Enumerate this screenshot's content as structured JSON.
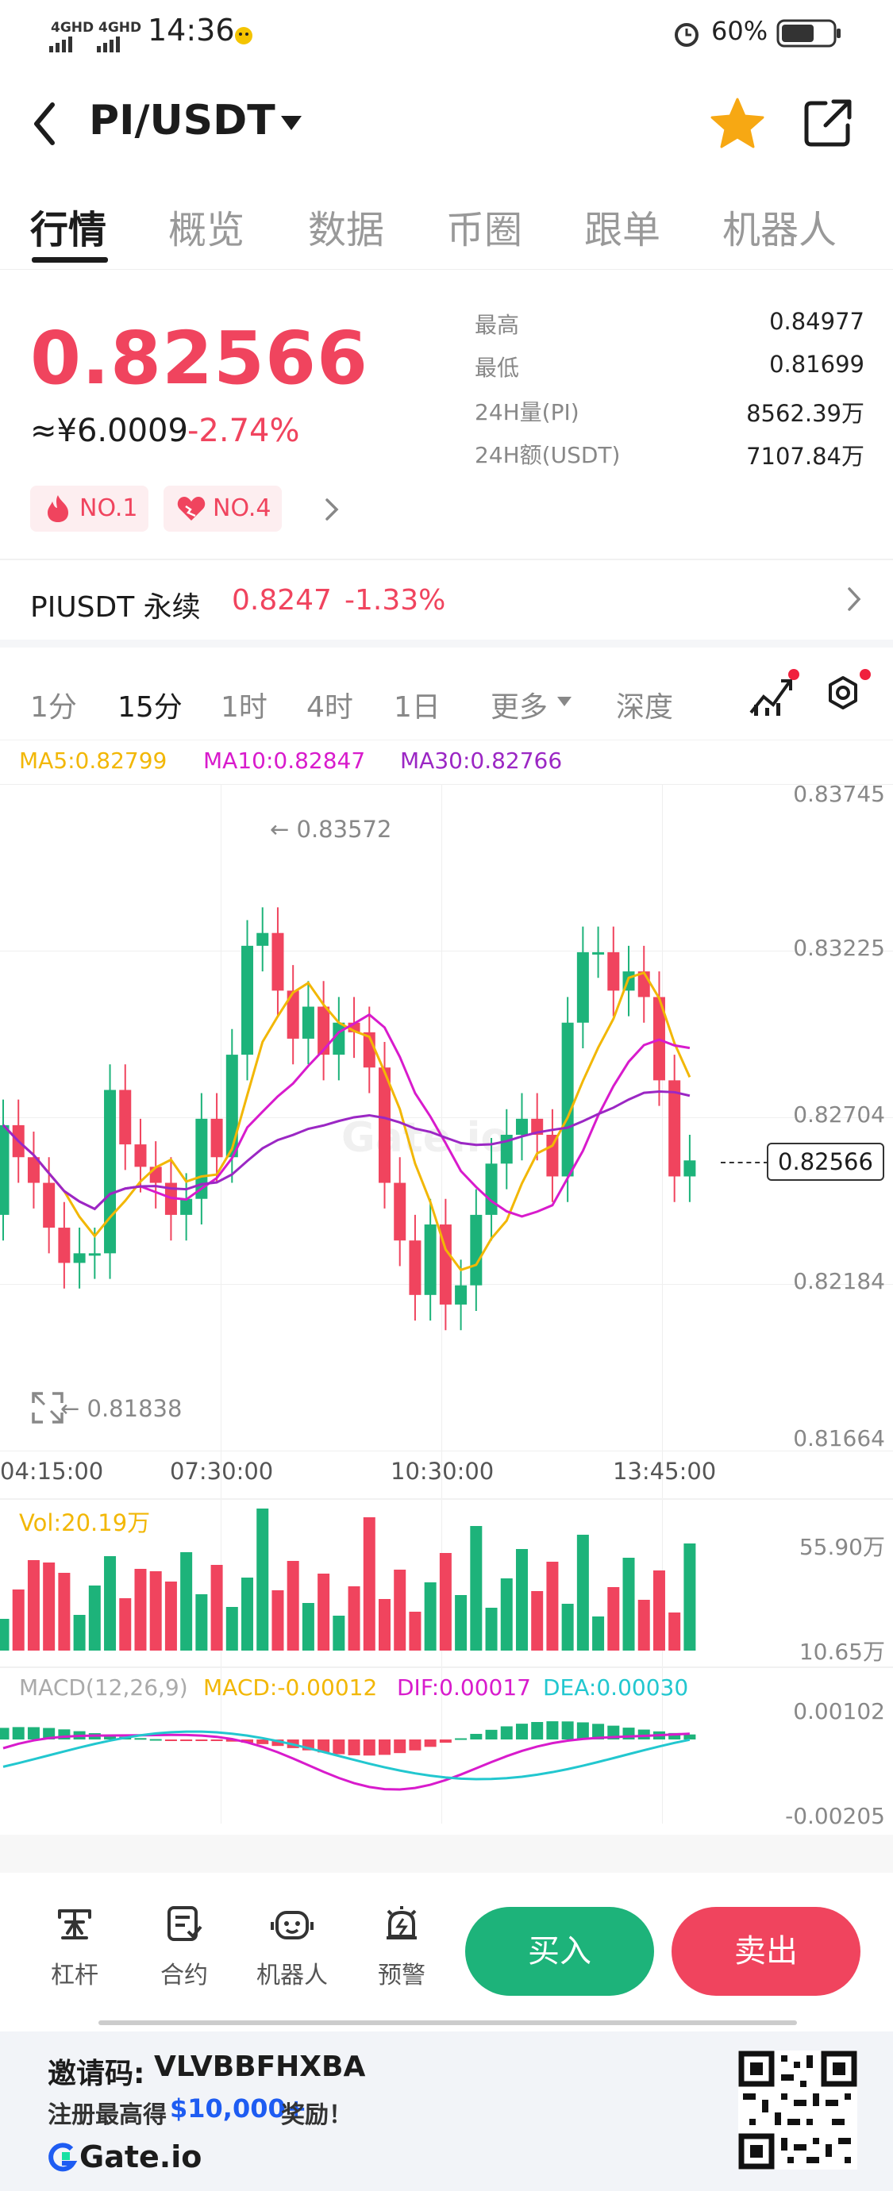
{
  "status_bar": {
    "network1": "4GHD",
    "network2": "4GHD",
    "time": "14:36",
    "battery": "60%"
  },
  "header": {
    "pair": "PI/USDT"
  },
  "tabs": [
    {
      "label": "行情",
      "active": true
    },
    {
      "label": "概览"
    },
    {
      "label": "数据"
    },
    {
      "label": "币圈"
    },
    {
      "label": "跟单"
    },
    {
      "label": "机器人"
    }
  ],
  "ticker": {
    "last_price": "0.82566",
    "cny_price": "≈¥6.0009",
    "change": "-2.74%",
    "stats": [
      {
        "label": "最高",
        "value": "0.84977"
      },
      {
        "label": "最低",
        "value": "0.81699"
      },
      {
        "label": "24H量(PI)",
        "value": "8562.39万"
      },
      {
        "label": "24H额(USDT)",
        "value": "7107.84万"
      }
    ],
    "rank_badges": [
      "NO.1",
      "NO.4"
    ]
  },
  "perpetual": {
    "name": "PIUSDT 永续",
    "price": "0.8247",
    "change": "-1.33%"
  },
  "timeframes": [
    {
      "label": "1分"
    },
    {
      "label": "15分",
      "active": true
    },
    {
      "label": "1时"
    },
    {
      "label": "4时"
    },
    {
      "label": "1日"
    },
    {
      "label": "更多"
    },
    {
      "label": "深度"
    }
  ],
  "ma_legend": {
    "ma5": "MA5:0.82799",
    "ma10": "MA10:0.82847",
    "ma30": "MA30:0.82766"
  },
  "main_chart": {
    "y_axis": [
      "0.83745",
      "0.83225",
      "0.82704",
      "0.82184",
      "0.81664"
    ],
    "x_axis": [
      "04:15:00",
      "07:30:00",
      "10:30:00",
      "13:45:00"
    ],
    "high_marker": "← 0.83572",
    "low_marker": "← 0.81838",
    "current_price_tag": "0.82566"
  },
  "volume": {
    "label": "Vol:20.19万",
    "max": "55.90万",
    "min": "10.65万"
  },
  "macd": {
    "params": "MACD(12,26,9)",
    "macd": "MACD:-0.00012",
    "dif": "DIF:0.00017",
    "dea": "DEA:0.00030",
    "top": "0.00102",
    "bottom": "-0.00205"
  },
  "bottom_tools": [
    {
      "icon": "leverage-icon",
      "label": "杠杆"
    },
    {
      "icon": "contract-icon",
      "label": "合约"
    },
    {
      "icon": "robot-icon",
      "label": "机器人"
    },
    {
      "icon": "alert-icon",
      "label": "预警"
    }
  ],
  "actions": {
    "buy": "买入",
    "sell": "卖出"
  },
  "promo": {
    "invite_label": "邀请码:",
    "invite_code": "VLVBBFHXBA",
    "reward_prefix": "注册最高得",
    "reward_amount": "$10,000+",
    "reward_suffix": "奖励！",
    "brand": "Gate.io"
  },
  "colors": {
    "up": "#1db37a",
    "down": "#f0445e",
    "ma5": "#f2b705",
    "ma10": "#d81bcc",
    "ma30": "#9b27c4",
    "dif": "#d81bcc",
    "dea": "#22c7cf"
  }
}
